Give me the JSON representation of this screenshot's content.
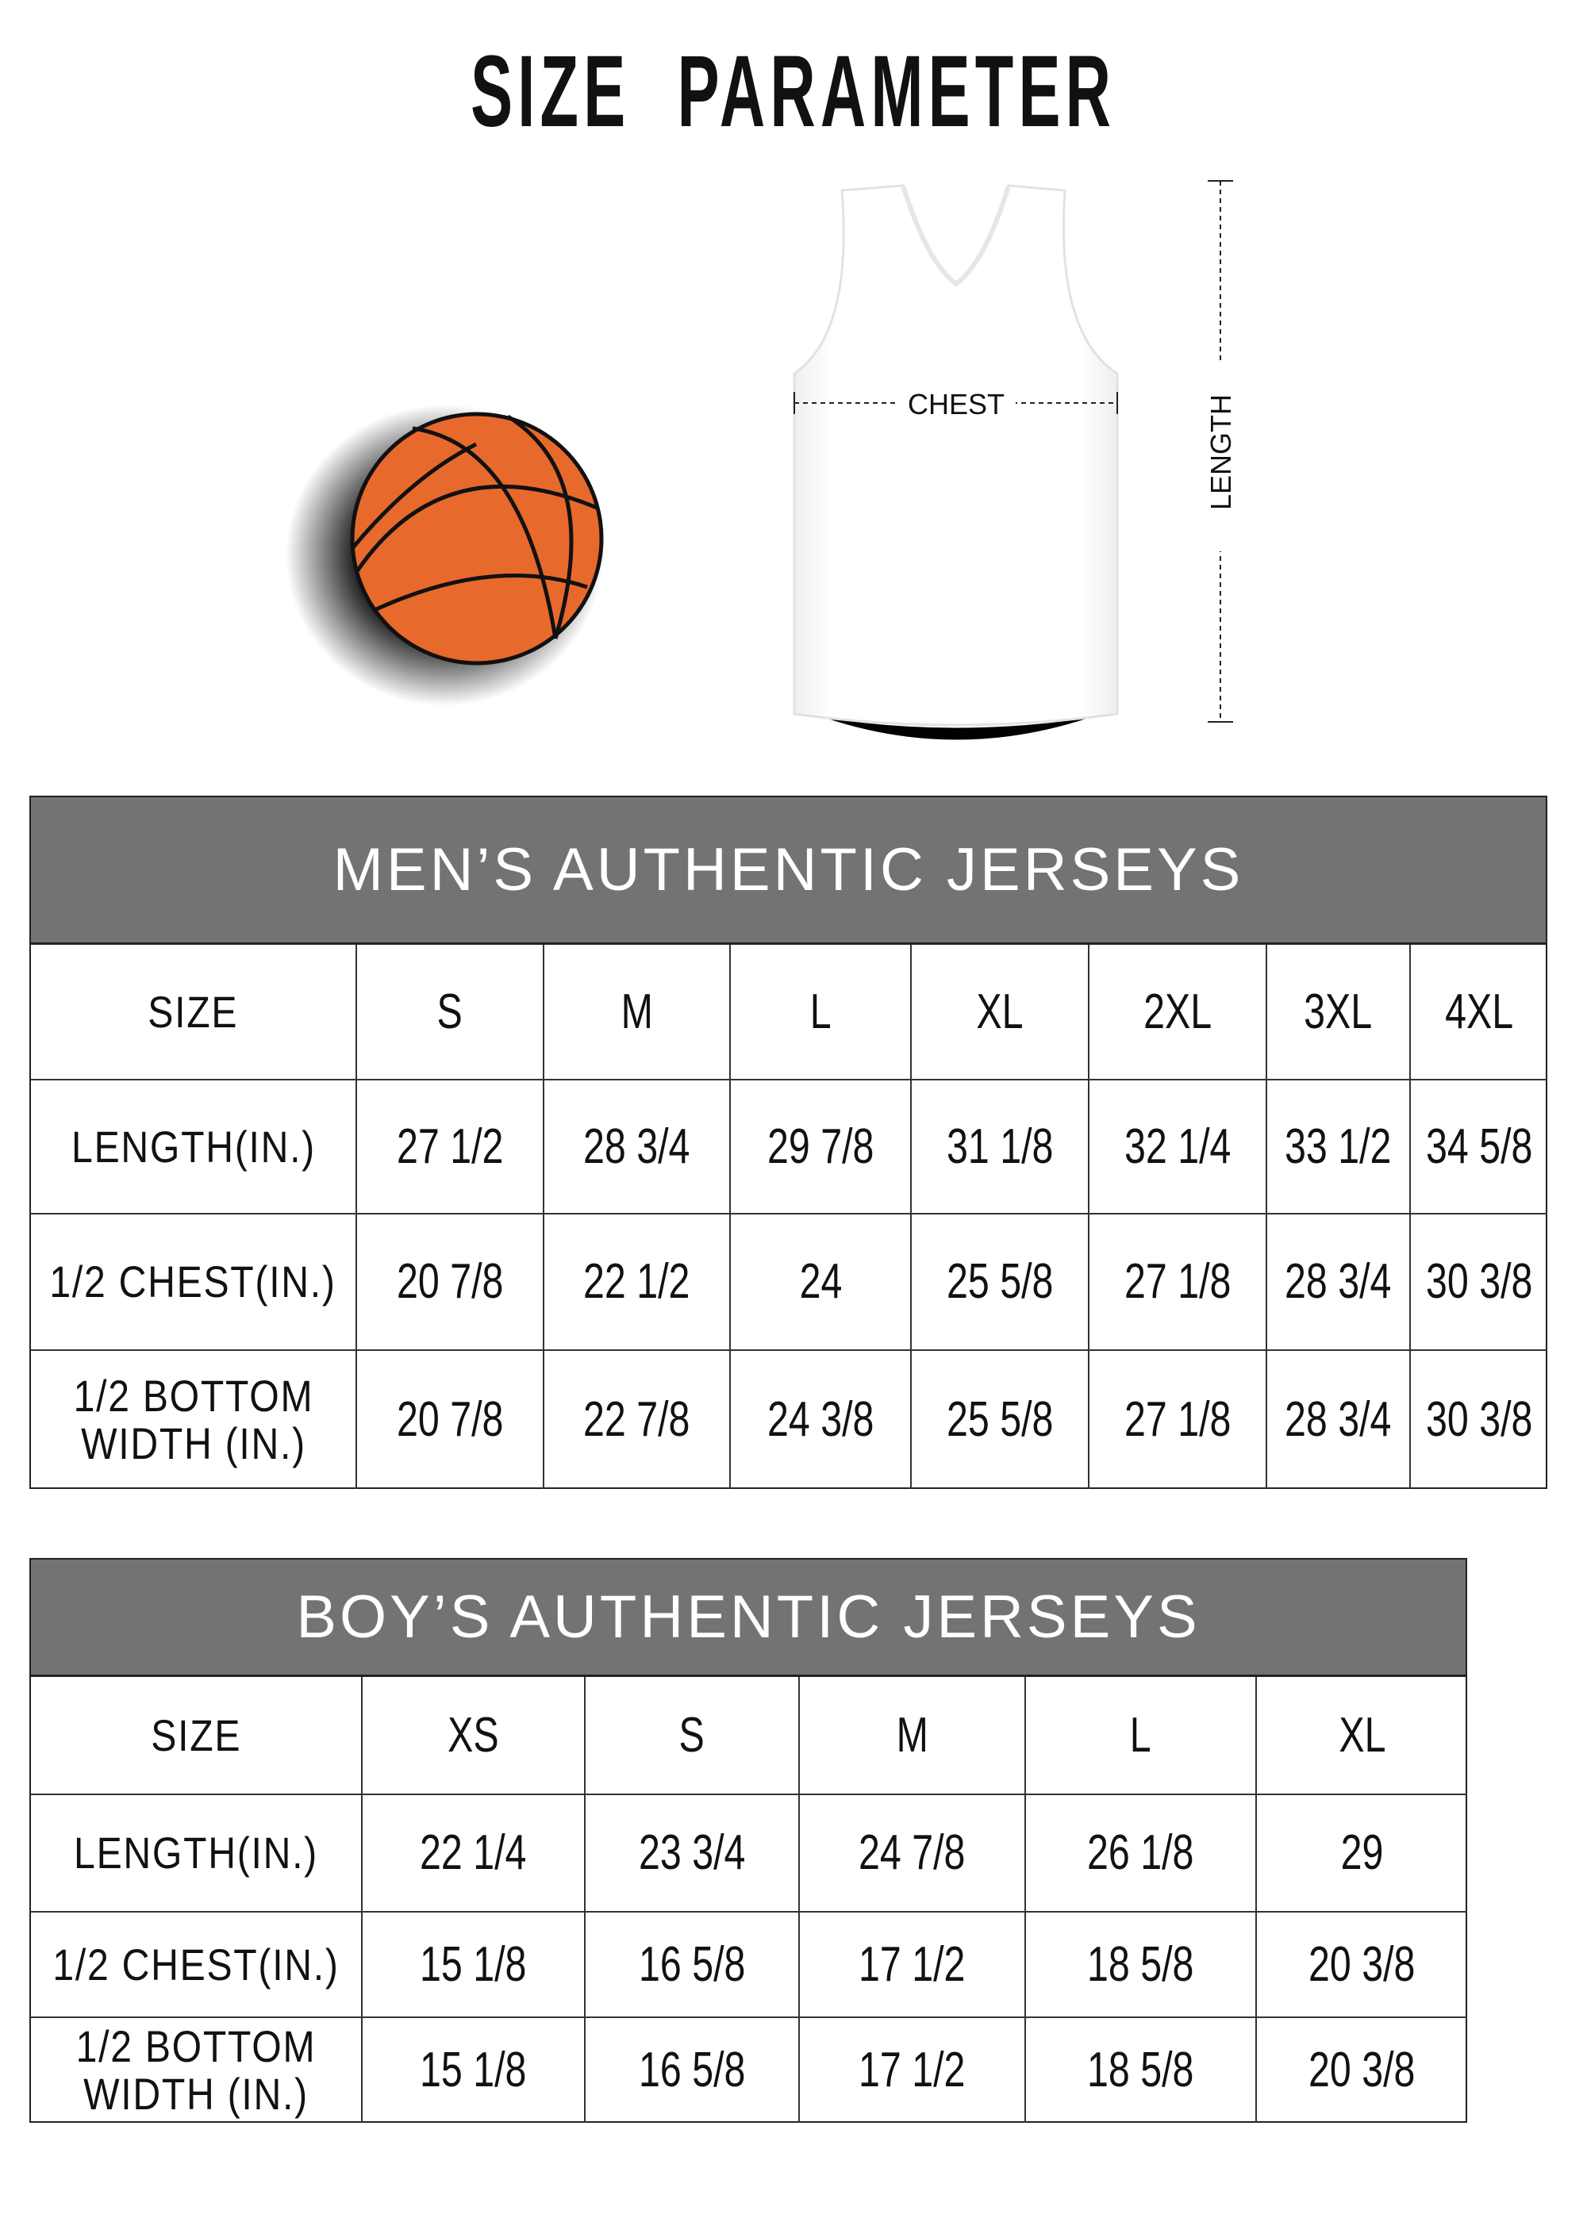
{
  "title": "SIZE   PARAMETER",
  "diagram": {
    "chest_label": "CHEST",
    "length_label": "LENGTH"
  },
  "colors": {
    "header_bg": "#737373",
    "ball": "#e8692c"
  },
  "mens": {
    "title": "MEN’S AUTHENTIC JERSEYS",
    "columns": [
      "SIZE",
      "S",
      "M",
      "L",
      "XL",
      "2XL",
      "3XL",
      "4XL"
    ],
    "rows": [
      [
        "LENGTH(IN.)",
        "27  1/2",
        "28  3/4",
        "29  7/8",
        "31  1/8",
        "32  1/4",
        "33  1/2",
        "34  5/8"
      ],
      [
        "1/2 CHEST(IN.)",
        "20  7/8",
        "22  1/2",
        "24",
        "25  5/8",
        "27  1/8",
        "28  3/4",
        "30  3/8"
      ],
      [
        "1/2 BOTTOM WIDTH  (IN.)",
        "20  7/8",
        "22  7/8",
        "24  3/8",
        "25  5/8",
        "27  1/8",
        "28  3/4",
        "30  3/8"
      ]
    ]
  },
  "boys": {
    "title": "BOY’S AUTHENTIC JERSEYS",
    "columns": [
      "SIZE",
      "XS",
      "S",
      "M",
      "L",
      "XL"
    ],
    "rows": [
      [
        "LENGTH(IN.)",
        "22  1/4",
        "23  3/4",
        "24  7/8",
        "26  1/8",
        "29"
      ],
      [
        "1/2 CHEST(IN.)",
        "15  1/8",
        "16  5/8",
        "17  1/2",
        "18  5/8",
        "20  3/8"
      ],
      [
        "1/2 BOTTOM WIDTH  (IN.)",
        "15  1/8",
        "16  5/8",
        "17  1/2",
        "18  5/8",
        "20  3/8"
      ]
    ]
  }
}
